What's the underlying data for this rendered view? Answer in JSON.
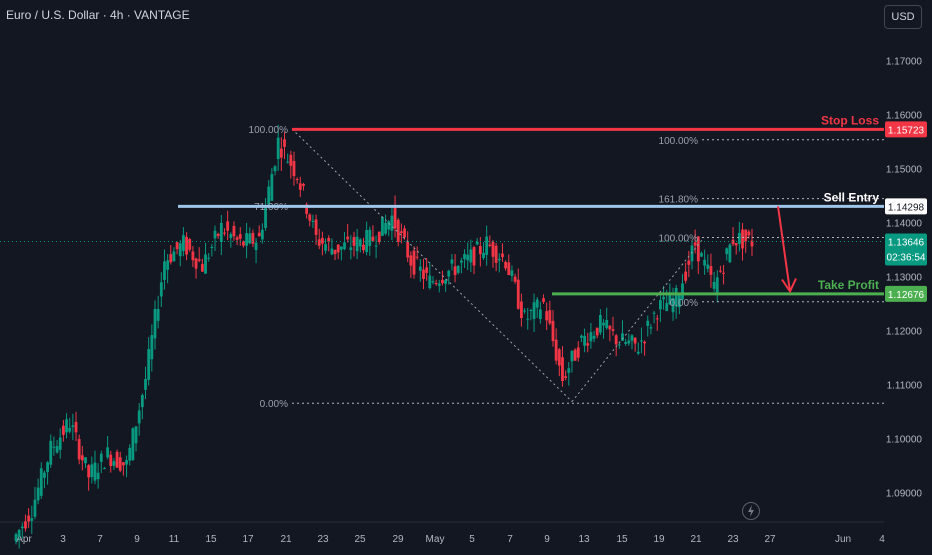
{
  "header": {
    "symbol_title": "Euro / U.S. Dollar · 4h · VANTAGE",
    "currency_button": "USD"
  },
  "colors": {
    "background": "#131722",
    "candle_up": "#089981",
    "candle_down": "#f23645",
    "stop_loss": "#f23645",
    "sell_entry": "#9fc5e8",
    "take_profit": "#4caf50",
    "fib_text": "#9aa0ad",
    "axis_text": "#b2b5be"
  },
  "chart_data": {
    "type": "candlestick",
    "instrument": "EURUSD",
    "timeframe": "4h",
    "y_axis": {
      "ticks": [
        1.17,
        1.16,
        1.15,
        1.14,
        1.13,
        1.12,
        1.11,
        1.1,
        1.09
      ],
      "tick_labels": [
        "1.17000",
        "1.16000",
        "1.15000",
        "1.14000",
        "1.13000",
        "1.12000",
        "1.11000",
        "1.10000",
        "1.09000"
      ],
      "range": [
        1.0845,
        1.1812
      ]
    },
    "x_axis": {
      "tick_labels": [
        "Apr",
        "3",
        "7",
        "9",
        "11",
        "15",
        "17",
        "21",
        "23",
        "25",
        "29",
        "May",
        "5",
        "7",
        "9",
        "13",
        "15",
        "19",
        "21",
        "23",
        "27",
        "Jun",
        "4"
      ]
    },
    "price_path": [
      [
        "Apr 1",
        1.081
      ],
      [
        "Apr 2",
        1.087
      ],
      [
        "Apr 3",
        1.098
      ],
      [
        "Apr 4",
        1.103
      ],
      [
        "Apr 7",
        1.093
      ],
      [
        "Apr 8",
        1.097
      ],
      [
        "Apr 9",
        1.095
      ],
      [
        "Apr 10",
        1.111
      ],
      [
        "Apr 11",
        1.133
      ],
      [
        "Apr 14",
        1.136
      ],
      [
        "Apr 15",
        1.132
      ],
      [
        "Apr 16",
        1.139
      ],
      [
        "Apr 17",
        1.136
      ],
      [
        "Apr 18",
        1.137
      ],
      [
        "Apr 21",
        1.155
      ],
      [
        "Apr 22",
        1.149
      ],
      [
        "Apr 23",
        1.137
      ],
      [
        "Apr 24",
        1.135
      ],
      [
        "Apr 25",
        1.136
      ],
      [
        "Apr 28",
        1.137
      ],
      [
        "Apr 29",
        1.141
      ],
      [
        "Apr 30",
        1.133
      ],
      [
        "May 1",
        1.129
      ],
      [
        "May 2",
        1.131
      ],
      [
        "May 5",
        1.133
      ],
      [
        "May 6",
        1.136
      ],
      [
        "May 7",
        1.133
      ],
      [
        "May 8",
        1.122
      ],
      [
        "May 9",
        1.125
      ],
      [
        "May 12",
        1.111
      ],
      [
        "May 13",
        1.118
      ],
      [
        "May 14",
        1.121
      ],
      [
        "May 15",
        1.118
      ],
      [
        "May 16",
        1.117
      ],
      [
        "May 19",
        1.124
      ],
      [
        "May 20",
        1.126
      ],
      [
        "May 21",
        1.136
      ],
      [
        "May 22",
        1.128
      ],
      [
        "May 23",
        1.137
      ],
      [
        "May 26",
        1.1365
      ]
    ],
    "levels": [
      {
        "name": "Stop Loss",
        "price": 1.15723,
        "label": "Stop Loss",
        "badge": "1.15723"
      },
      {
        "name": "Sell Entry",
        "price": 1.14298,
        "label": "Sell Entry",
        "badge": "1.14298"
      },
      {
        "name": "Take Profit",
        "price": 1.12676,
        "label": "Take Profit",
        "badge": "1.12676"
      }
    ],
    "current_price": {
      "price": 1.13646,
      "label": "1.13646",
      "countdown": "02:36:54"
    },
    "fib_left": [
      {
        "label": "100.00%",
        "price": 1.1573
      },
      {
        "label": "71.00%",
        "price": 1.143
      },
      {
        "label": "0.00%",
        "price": 1.1065
      }
    ],
    "fib_right": [
      {
        "label": "100.00%",
        "price": 1.1553
      },
      {
        "label": "161.80%",
        "price": 1.1444
      },
      {
        "label": "100.00%",
        "price": 1.1372
      },
      {
        "label": "0.00%",
        "price": 1.1253
      }
    ]
  }
}
